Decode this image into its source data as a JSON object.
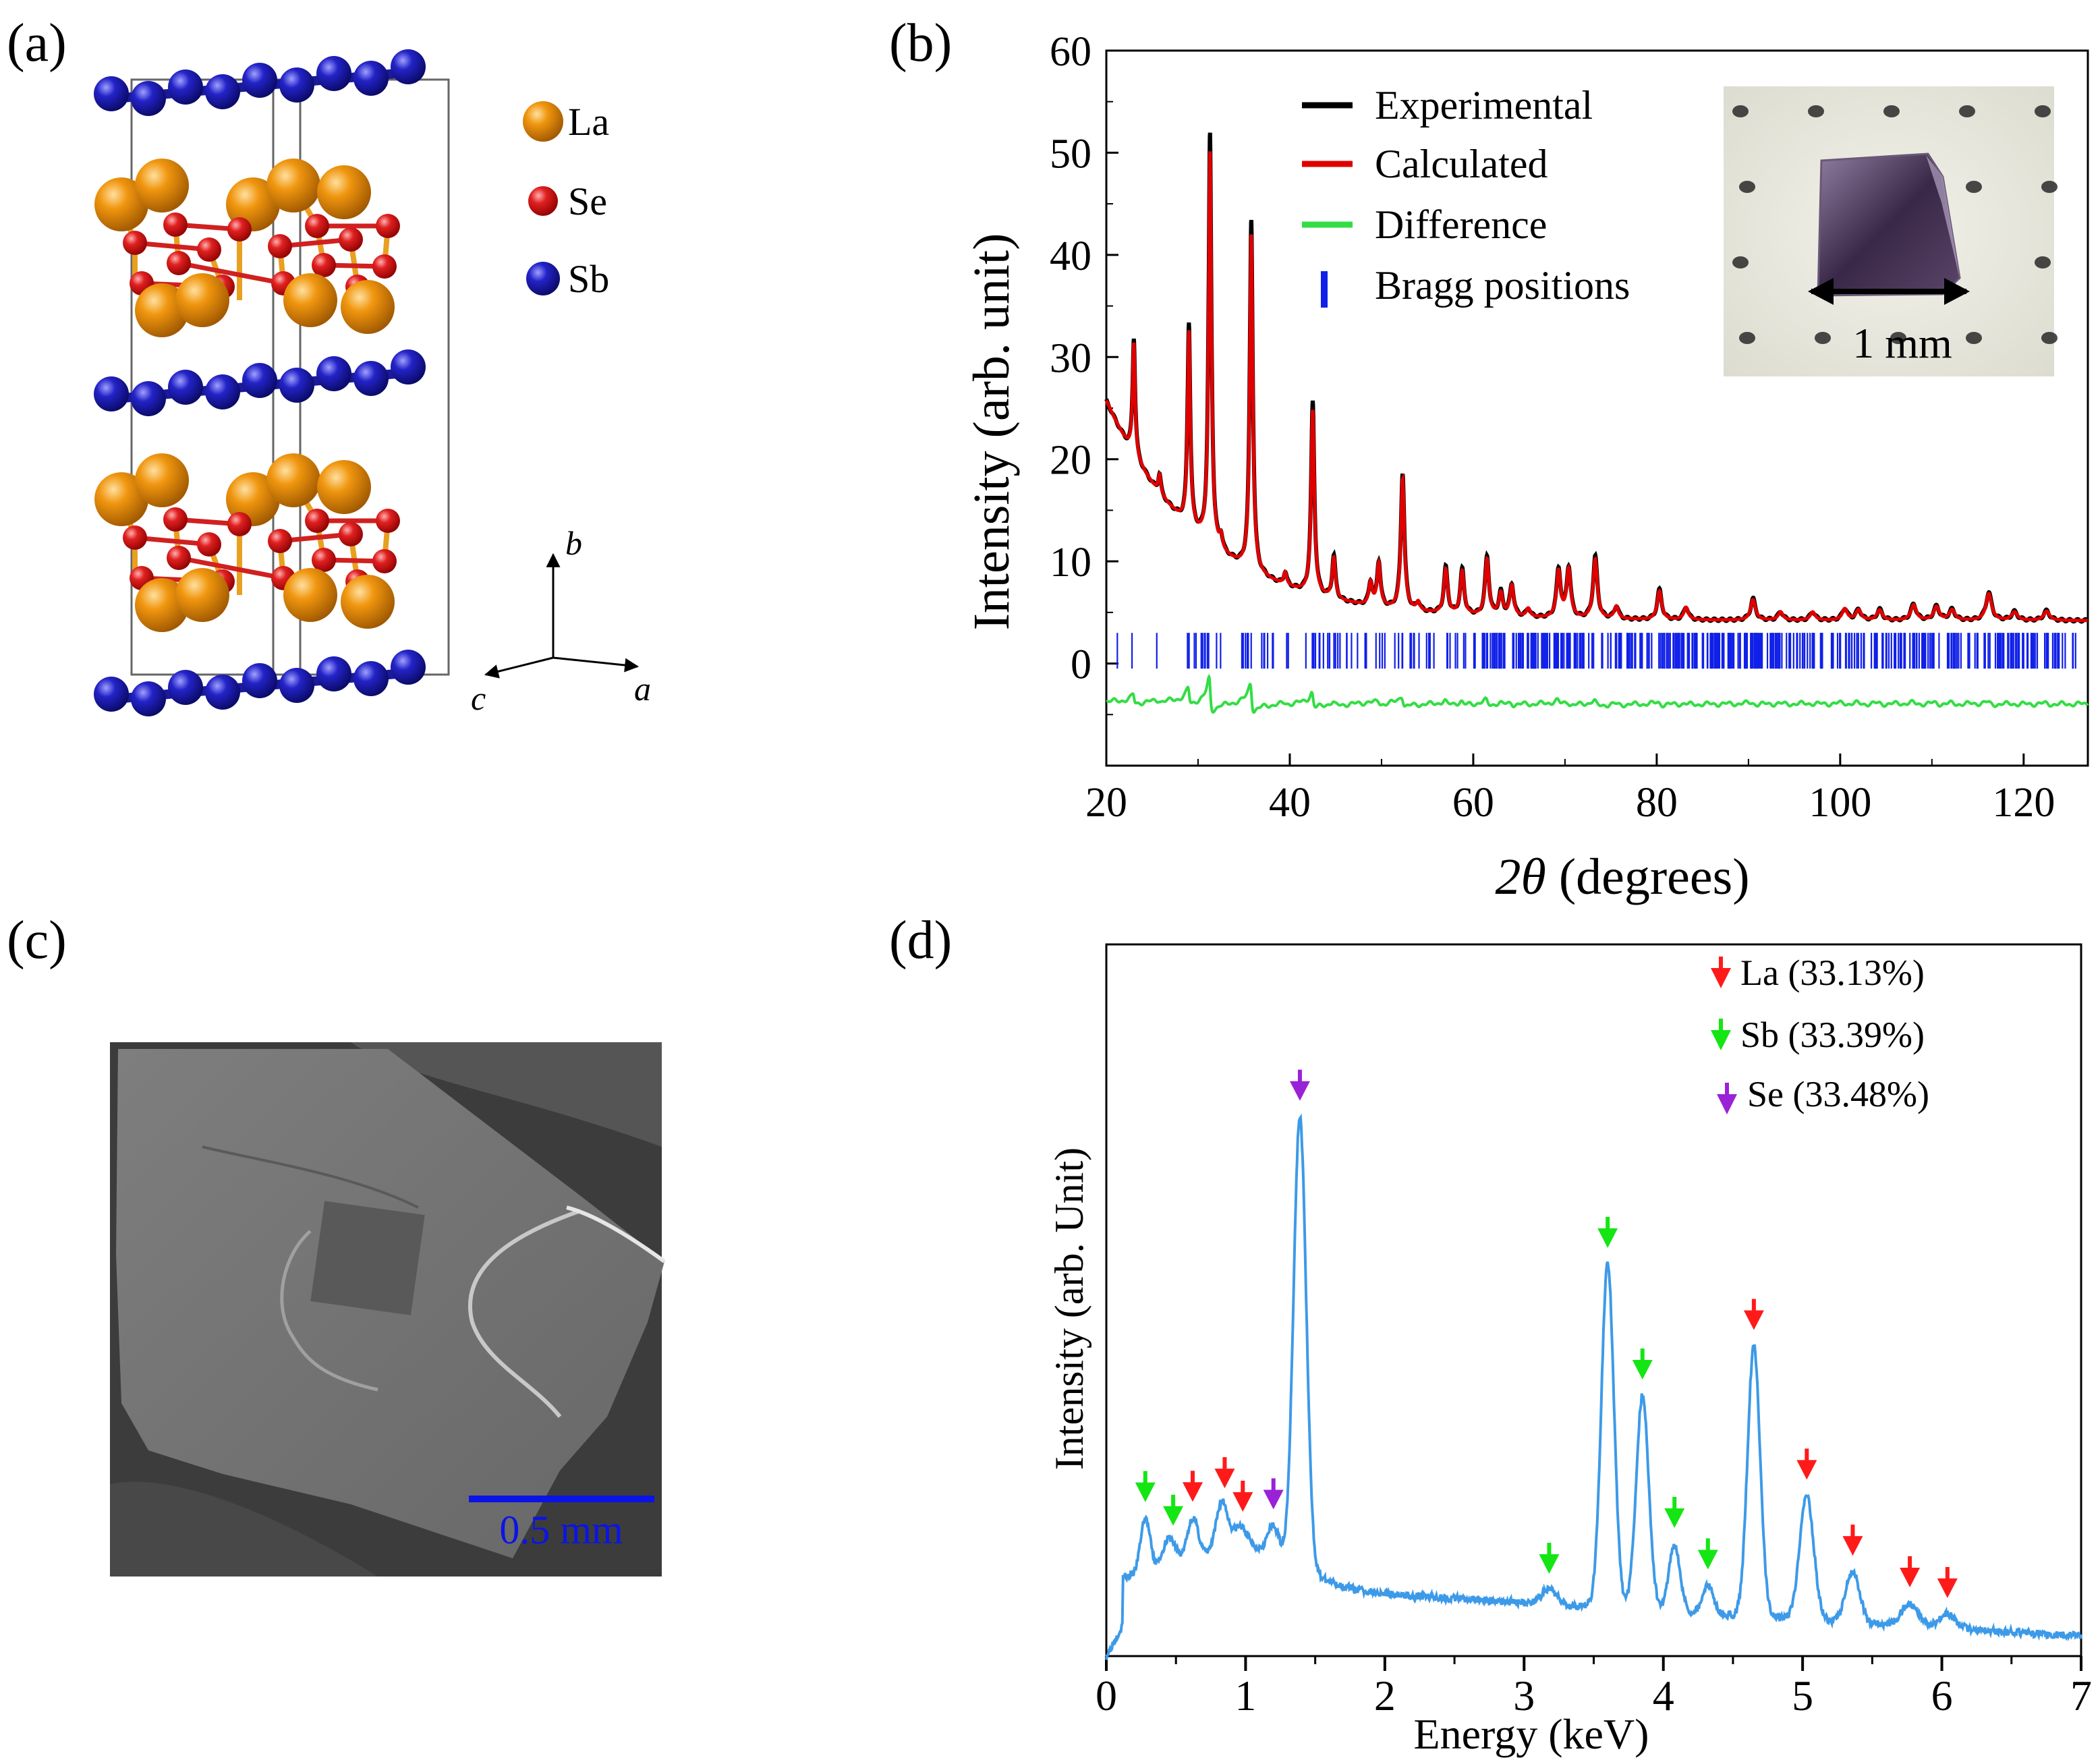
{
  "panels": {
    "a": {
      "label": "(a)"
    },
    "b": {
      "label": "(b)"
    },
    "c": {
      "label": "(c)"
    },
    "d": {
      "label": "(d)"
    }
  },
  "structure": {
    "legend": [
      {
        "name": "La",
        "color": "#f0960f"
      },
      {
        "name": "Se",
        "color": "#e02020"
      },
      {
        "name": "Sb",
        "color": "#2323c8"
      }
    ],
    "axes": {
      "b": "b",
      "a": "a",
      "c": "c"
    }
  },
  "sem": {
    "scale_label": "0.5 mm",
    "scale_color": "#0a14e6"
  },
  "inset": {
    "scale_label": "1 mm"
  },
  "chart_data": [
    {
      "id": "xrd",
      "type": "line",
      "title": "",
      "xlabel": "(degrees)",
      "xlabel_symbol": "2θ",
      "ylabel": "Intensity (arb. unit)",
      "xlim": [
        20,
        127
      ],
      "ylim": [
        -10,
        60
      ],
      "xticks": [
        20,
        40,
        60,
        80,
        100,
        120
      ],
      "yticks": [
        0,
        10,
        20,
        30,
        40,
        50,
        60
      ],
      "legend": [
        {
          "name": "Experimental",
          "color": "#000000"
        },
        {
          "name": "Calculated",
          "color": "#e00000"
        },
        {
          "name": "Difference",
          "color": "#33dd44"
        },
        {
          "name": "Bragg positions",
          "color": "#1020e8"
        }
      ],
      "background": {
        "A": 21.5,
        "tau": 10.5,
        "floor": 4.2
      },
      "peaks": [
        {
          "x": 23.0,
          "h": 11.0
        },
        {
          "x": 25.8,
          "h": 1.8
        },
        {
          "x": 29.0,
          "h": 19.0
        },
        {
          "x": 31.3,
          "h": 38.5
        },
        {
          "x": 32.5,
          "h": 1.2
        },
        {
          "x": 35.8,
          "h": 33.0
        },
        {
          "x": 39.5,
          "h": 1.2
        },
        {
          "x": 42.5,
          "h": 18.0
        },
        {
          "x": 44.8,
          "h": 4.0
        },
        {
          "x": 48.8,
          "h": 2.2
        },
        {
          "x": 49.7,
          "h": 4.2
        },
        {
          "x": 52.3,
          "h": 12.8
        },
        {
          "x": 54.0,
          "h": 0.8
        },
        {
          "x": 57.0,
          "h": 4.3
        },
        {
          "x": 58.8,
          "h": 4.2
        },
        {
          "x": 61.5,
          "h": 5.5
        },
        {
          "x": 63.0,
          "h": 2.2
        },
        {
          "x": 64.2,
          "h": 3.0
        },
        {
          "x": 66.0,
          "h": 0.8
        },
        {
          "x": 69.3,
          "h": 4.5
        },
        {
          "x": 70.4,
          "h": 4.7
        },
        {
          "x": 73.3,
          "h": 5.8
        },
        {
          "x": 75.6,
          "h": 1.2
        },
        {
          "x": 80.3,
          "h": 2.8
        },
        {
          "x": 83.2,
          "h": 1.2
        },
        {
          "x": 90.5,
          "h": 2.0
        },
        {
          "x": 93.5,
          "h": 0.8
        },
        {
          "x": 97.0,
          "h": 0.8
        },
        {
          "x": 100.5,
          "h": 1.1
        },
        {
          "x": 102.0,
          "h": 1.0
        },
        {
          "x": 104.3,
          "h": 1.0
        },
        {
          "x": 108.0,
          "h": 1.5
        },
        {
          "x": 110.5,
          "h": 1.3
        },
        {
          "x": 112.2,
          "h": 1.0
        },
        {
          "x": 116.2,
          "h": 2.6
        },
        {
          "x": 119.0,
          "h": 0.8
        },
        {
          "x": 122.5,
          "h": 0.9
        }
      ],
      "tick_row": {
        "y_top": 3.0,
        "y_bottom": -0.5,
        "low": [
          21.2,
          22.8,
          25.5
        ],
        "ranges": [
          [
            28.5,
            33.0
          ],
          [
            34.5,
            40.0
          ],
          [
            41.0,
            50.5
          ],
          [
            51.0,
            60.5
          ],
          [
            61.0,
            126.0
          ]
        ]
      },
      "difference_offset": -3.9
    },
    {
      "id": "edx",
      "type": "line",
      "title": "",
      "xlabel": "Energy (keV)",
      "ylabel": "Intensity (arb. Unit)",
      "xlim": [
        0,
        7
      ],
      "xticks": [
        0,
        1,
        2,
        3,
        4,
        5,
        6,
        7
      ],
      "ylim": [
        0,
        100
      ],
      "legend": [
        {
          "name": "La (33.13%)",
          "color": "#ff1a1a"
        },
        {
          "name": "Sb (33.39%)",
          "color": "#14e614"
        },
        {
          "name": "Se (33.48%)",
          "color": "#9a22d6"
        }
      ],
      "baseline": {
        "start": 14.0,
        "end": 3.5
      },
      "peaks": [
        {
          "x": 0.28,
          "h": 10.0,
          "w": 0.035
        },
        {
          "x": 0.45,
          "h": 5.5,
          "w": 0.05
        },
        {
          "x": 0.62,
          "h": 7.5,
          "w": 0.04
        },
        {
          "x": 0.83,
          "h": 8.5,
          "w": 0.04
        },
        {
          "x": 0.96,
          "h": 3.5,
          "w": 0.05
        },
        {
          "x": 1.2,
          "h": 5.0,
          "w": 0.04
        },
        {
          "x": 1.39,
          "h": 80.0,
          "w": 0.045
        },
        {
          "x": 3.18,
          "h": 2.5,
          "w": 0.06
        },
        {
          "x": 3.6,
          "h": 61.0,
          "w": 0.045
        },
        {
          "x": 3.85,
          "h": 38.0,
          "w": 0.045
        },
        {
          "x": 4.08,
          "h": 12.0,
          "w": 0.04
        },
        {
          "x": 4.32,
          "h": 5.0,
          "w": 0.04
        },
        {
          "x": 4.65,
          "h": 48.0,
          "w": 0.045
        },
        {
          "x": 5.03,
          "h": 22.0,
          "w": 0.05
        },
        {
          "x": 5.36,
          "h": 9.0,
          "w": 0.05
        },
        {
          "x": 5.77,
          "h": 4.0,
          "w": 0.06
        },
        {
          "x": 6.04,
          "h": 2.5,
          "w": 0.06
        }
      ],
      "markers": [
        {
          "x": 0.28,
          "el": "Sb"
        },
        {
          "x": 0.48,
          "el": "Sb"
        },
        {
          "x": 0.62,
          "el": "La"
        },
        {
          "x": 0.85,
          "el": "La"
        },
        {
          "x": 0.98,
          "el": "La"
        },
        {
          "x": 1.2,
          "el": "Se"
        },
        {
          "x": 1.39,
          "el": "Se"
        },
        {
          "x": 3.18,
          "el": "Sb"
        },
        {
          "x": 3.6,
          "el": "Sb"
        },
        {
          "x": 3.85,
          "el": "Sb"
        },
        {
          "x": 4.08,
          "el": "Sb"
        },
        {
          "x": 4.32,
          "el": "Sb"
        },
        {
          "x": 4.65,
          "el": "La"
        },
        {
          "x": 5.03,
          "el": "La"
        },
        {
          "x": 5.36,
          "el": "La"
        },
        {
          "x": 5.77,
          "el": "La"
        },
        {
          "x": 6.04,
          "el": "La"
        }
      ]
    }
  ]
}
